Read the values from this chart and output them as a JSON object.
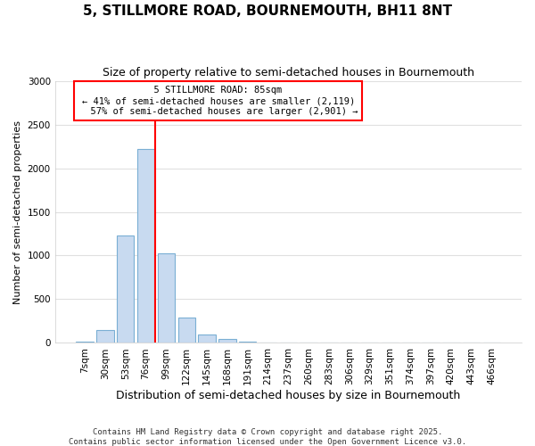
{
  "title": "5, STILLMORE ROAD, BOURNEMOUTH, BH11 8NT",
  "subtitle": "Size of property relative to semi-detached houses in Bournemouth",
  "xlabel": "Distribution of semi-detached houses by size in Bournemouth",
  "ylabel": "Number of semi-detached properties",
  "categories": [
    "7sqm",
    "30sqm",
    "53sqm",
    "76sqm",
    "99sqm",
    "122sqm",
    "145sqm",
    "168sqm",
    "191sqm",
    "214sqm",
    "237sqm",
    "260sqm",
    "283sqm",
    "306sqm",
    "329sqm",
    "351sqm",
    "374sqm",
    "397sqm",
    "420sqm",
    "443sqm",
    "466sqm"
  ],
  "values": [
    10,
    150,
    1230,
    2220,
    1030,
    290,
    100,
    50,
    10,
    5,
    5,
    5,
    0,
    0,
    0,
    0,
    0,
    0,
    0,
    0,
    0
  ],
  "bar_color": "#c8daf0",
  "bar_edge_color": "#7aafd4",
  "property_label": "5 STILLMORE ROAD: 85sqm",
  "smaller_pct": "41%",
  "smaller_count": "2,119",
  "larger_pct": "57%",
  "larger_count": "2,901",
  "vline_x_index": 3,
  "vline_color": "red",
  "annotation_box_edgecolor": "red",
  "ylim": [
    0,
    3000
  ],
  "yticks": [
    0,
    500,
    1000,
    1500,
    2000,
    2500,
    3000
  ],
  "footer_line1": "Contains HM Land Registry data © Crown copyright and database right 2025.",
  "footer_line2": "Contains public sector information licensed under the Open Government Licence v3.0.",
  "bg_color": "#ffffff",
  "grid_color": "#e0e0e0"
}
